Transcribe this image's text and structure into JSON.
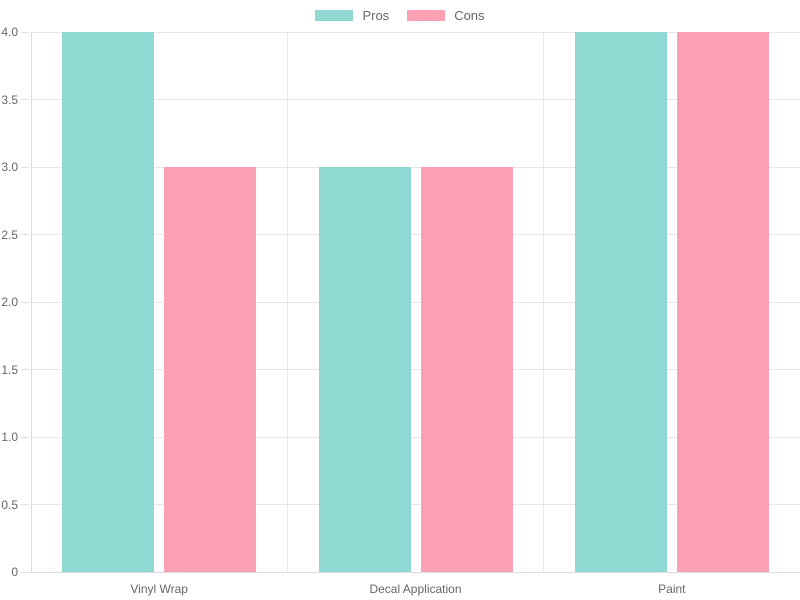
{
  "chart_data": {
    "type": "bar",
    "title": "",
    "categories": [
      "Vinyl Wrap",
      "Decal Application",
      "Paint"
    ],
    "series": [
      {
        "name": "Pros",
        "color": "#90D8D2",
        "values": [
          4,
          3,
          4
        ]
      },
      {
        "name": "Cons",
        "color": "#FCA1B3",
        "values": [
          3,
          3,
          4
        ]
      }
    ],
    "ylim": [
      0,
      4
    ],
    "ytick_step": 0.5,
    "ytick_labels": [
      "0",
      "0.5",
      "1.0",
      "1.5",
      "2.0",
      "2.5",
      "3.0",
      "3.5",
      "4.0"
    ],
    "grid": true,
    "legend_position": "top"
  },
  "colors": {
    "background": "#FFFFFF",
    "gridline": "#E7E7E7",
    "axis": "#DCDCDC",
    "tick": "#E0E0E0",
    "text": "#666666"
  },
  "legend": {
    "items": [
      {
        "label": "Pros",
        "color": "#90D8D2"
      },
      {
        "label": "Cons",
        "color": "#FCA1B3"
      }
    ]
  }
}
